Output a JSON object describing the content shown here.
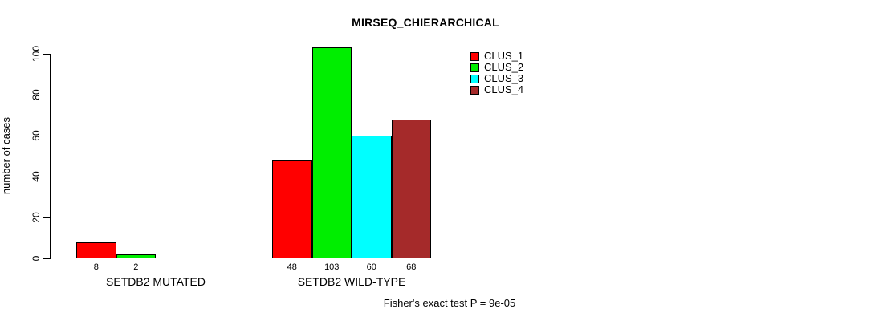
{
  "chart_data": {
    "type": "bar",
    "title": "MIRSEQ_CHIERARCHICAL",
    "xlabel": "",
    "ylabel": "number of cases",
    "ylim": [
      0,
      103
    ],
    "yticks": [
      0,
      20,
      40,
      60,
      80,
      100
    ],
    "grid": false,
    "legend_position": "top-right",
    "categories": [
      "SETDB2 MUTATED",
      "SETDB2 WILD-TYPE"
    ],
    "series": [
      {
        "name": "CLUS_1",
        "color": "#ff0000",
        "values": [
          8,
          48
        ]
      },
      {
        "name": "CLUS_2",
        "color": "#00ee00",
        "values": [
          2,
          103
        ]
      },
      {
        "name": "CLUS_3",
        "color": "#00ffff",
        "values": [
          0,
          60
        ]
      },
      {
        "name": "CLUS_4",
        "color": "#a52a2a",
        "values": [
          0,
          68
        ]
      }
    ],
    "value_labels_shown": [
      [
        8,
        2
      ],
      [
        48,
        103,
        60,
        68
      ]
    ],
    "annotation": "Fisher's exact test P = 9e-05"
  }
}
